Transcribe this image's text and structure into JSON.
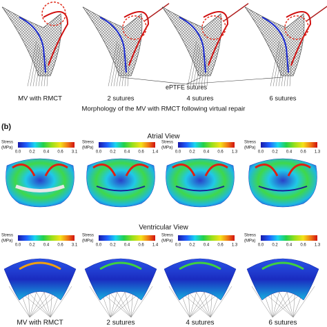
{
  "panel_a": {
    "columns": [
      "MV with RMCT",
      "2 sutures",
      "4 sutures",
      "6 sutures"
    ],
    "annotation": "ePTFE sutures",
    "caption": "Morphology of the MV with RMCT following virtual repair"
  },
  "panel_b": {
    "label": "(b)",
    "colorbar_label": [
      "Stress",
      "(MPa)"
    ],
    "views": [
      {
        "title": "Atrial View",
        "colorbars": [
          [
            "0.0",
            "0.2",
            "0.4",
            "0.6",
            "3.1"
          ],
          [
            "0.0",
            "0.2",
            "0.4",
            "0.6",
            "1.4"
          ],
          [
            "0.0",
            "0.2",
            "0.4",
            "0.6",
            "1.3"
          ],
          [
            "0.0",
            "0.2",
            "0.4",
            "0.6",
            "1.3"
          ]
        ]
      },
      {
        "title": "Ventricular View",
        "colorbars": [
          [
            "0.0",
            "0.2",
            "0.4",
            "0.6",
            "3.1"
          ],
          [
            "0.0",
            "0.2",
            "0.4",
            "0.6",
            "1.4"
          ],
          [
            "0.0",
            "0.2",
            "0.4",
            "0.6",
            "1.3"
          ],
          [
            "0.0",
            "0.2",
            "0.4",
            "0.6",
            "1.3"
          ]
        ]
      }
    ],
    "columns": [
      "MV with RMCT",
      "2 sutures",
      "4 sutures",
      "6 sutures"
    ]
  }
}
